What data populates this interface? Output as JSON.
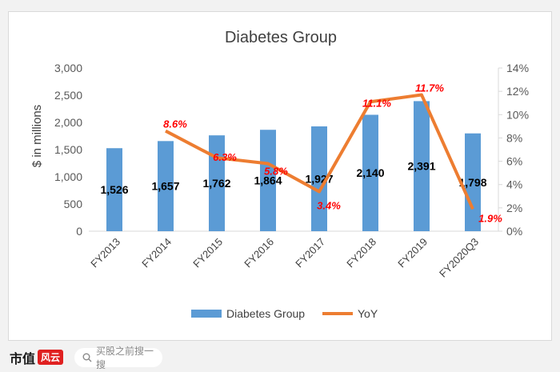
{
  "chart_data": {
    "type": "bar",
    "title": "Diabetes Group",
    "ylabel": "$ in millions",
    "categories": [
      "FY2013",
      "FY2014",
      "FY2015",
      "FY2016",
      "FY2017",
      "FY2018",
      "FY2019",
      "FY2020Q3"
    ],
    "series": [
      {
        "name": "Diabetes Group",
        "type": "bar",
        "axis": "left",
        "color": "#5b9bd5",
        "values": [
          1526,
          1657,
          1762,
          1864,
          1927,
          2140,
          2391,
          1798
        ],
        "labels": [
          "1,526",
          "1,657",
          "1,762",
          "1,864",
          "1,927",
          "2,140",
          "2,391",
          "1,798"
        ]
      },
      {
        "name": "YoY",
        "type": "line",
        "axis": "right",
        "color": "#ed7d31",
        "values": [
          null,
          8.6,
          6.3,
          5.8,
          3.4,
          11.1,
          11.7,
          1.9
        ],
        "labels": [
          "",
          "8.6%",
          "6.3%",
          "5.8%",
          "3.4%",
          "11.1%",
          "11.7%",
          "1.9%"
        ]
      }
    ],
    "ylim": [
      0,
      3000
    ],
    "y2lim": [
      0,
      14
    ],
    "yticks": [
      "0",
      "500",
      "1,000",
      "1,500",
      "2,000",
      "2,500",
      "3,000"
    ],
    "y2ticks": [
      "0%",
      "2%",
      "4%",
      "6%",
      "8%",
      "10%",
      "12%",
      "14%"
    ],
    "legend_position": "bottom",
    "grid": false,
    "yoy_label_color": "#ff0000"
  },
  "footer": {
    "brand_text": "市值",
    "brand_mark": "风云",
    "search_placeholder": "买股之前搜一搜"
  }
}
